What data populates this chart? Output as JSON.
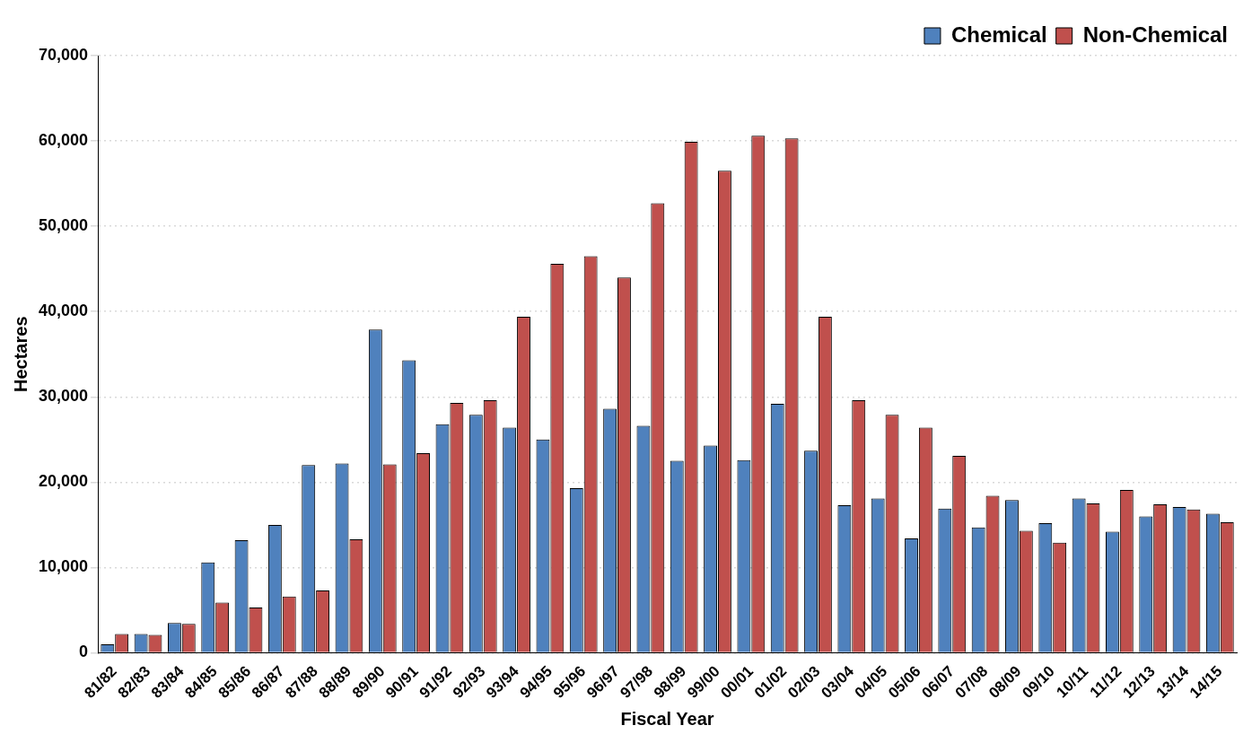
{
  "chart_data": {
    "type": "bar",
    "xlabel": "Fiscal Year",
    "ylabel": "Hectares",
    "categories": [
      "81/82",
      "82/83",
      "83/84",
      "84/85",
      "85/86",
      "86/87",
      "87/88",
      "88/89",
      "89/90",
      "90/91",
      "91/92",
      "92/93",
      "93/94",
      "94/95",
      "95/96",
      "96/97",
      "97/98",
      "98/99",
      "99/00",
      "00/01",
      "01/02",
      "02/03",
      "03/04",
      "04/05",
      "05/06",
      "06/07",
      "07/08",
      "08/09",
      "09/10",
      "10/11",
      "11/12",
      "12/13",
      "13/14",
      "14/15"
    ],
    "series": [
      {
        "name": "Chemical",
        "color": "#4f81bd",
        "values": [
          1000,
          2200,
          3500,
          10600,
          13200,
          15000,
          22000,
          22200,
          37900,
          34300,
          26800,
          27900,
          26400,
          25000,
          19300,
          28600,
          26600,
          22500,
          24300,
          22600,
          29200,
          23700,
          17300,
          18100,
          13400,
          16900,
          14700,
          17900,
          15200,
          18100,
          14200,
          16000,
          17100,
          16300
        ]
      },
      {
        "name": "Non-Chemical",
        "color": "#c0504d",
        "values": [
          2200,
          2100,
          3400,
          5900,
          5300,
          6600,
          7300,
          13300,
          22100,
          23400,
          29300,
          29600,
          39400,
          45600,
          46500,
          44000,
          52700,
          59900,
          56500,
          60600,
          60300,
          39400,
          29600,
          27900,
          26400,
          23100,
          18400,
          14300,
          12900,
          17500,
          19100,
          17400,
          16800,
          15300
        ]
      }
    ],
    "ylim": [
      0,
      70000
    ],
    "yticks": [
      {
        "value": 0,
        "label": "0"
      },
      {
        "value": 10000,
        "label": "10,000"
      },
      {
        "value": 20000,
        "label": "20,000"
      },
      {
        "value": 30000,
        "label": "30,000"
      },
      {
        "value": 40000,
        "label": "40,000"
      },
      {
        "value": 50000,
        "label": "50,000"
      },
      {
        "value": 60000,
        "label": "60,000"
      },
      {
        "value": 70000,
        "label": "70,000"
      }
    ],
    "grid": "y",
    "legend": "top right"
  }
}
